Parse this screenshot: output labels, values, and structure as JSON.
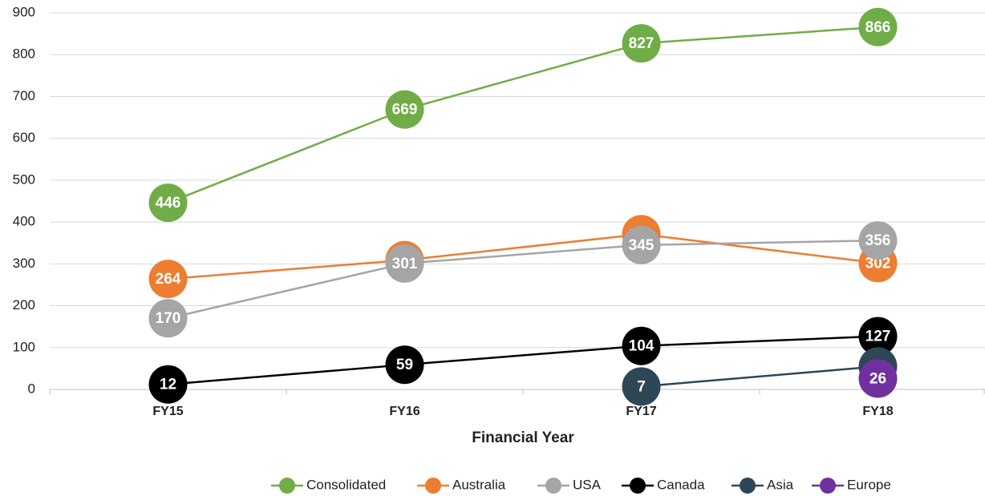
{
  "chart_data": {
    "type": "line",
    "x_label": "Financial Year",
    "categories": [
      "FY15",
      "FY16",
      "FY17",
      "FY18"
    ],
    "series": [
      {
        "name": "Consolidated",
        "color": "#70ad47",
        "values": [
          446,
          669,
          827,
          866
        ]
      },
      {
        "name": "Australia",
        "color": "#ed7d31",
        "values": [
          264,
          309,
          371,
          302
        ]
      },
      {
        "name": "USA",
        "color": "#a5a5a5",
        "values": [
          170,
          301,
          345,
          356
        ]
      },
      {
        "name": "Canada",
        "color": "#000000",
        "values": [
          12,
          59,
          104,
          127
        ]
      },
      {
        "name": "Asia",
        "color": "#2e4756",
        "values": [
          null,
          null,
          7,
          55
        ]
      },
      {
        "name": "Europe",
        "color": "#7030a0",
        "values": [
          null,
          null,
          null,
          26
        ]
      }
    ],
    "ylim": [
      0,
      900
    ],
    "yticks": [
      0,
      100,
      200,
      300,
      400,
      500,
      600,
      700,
      800,
      900
    ],
    "grid": true,
    "legend": "bottom"
  }
}
